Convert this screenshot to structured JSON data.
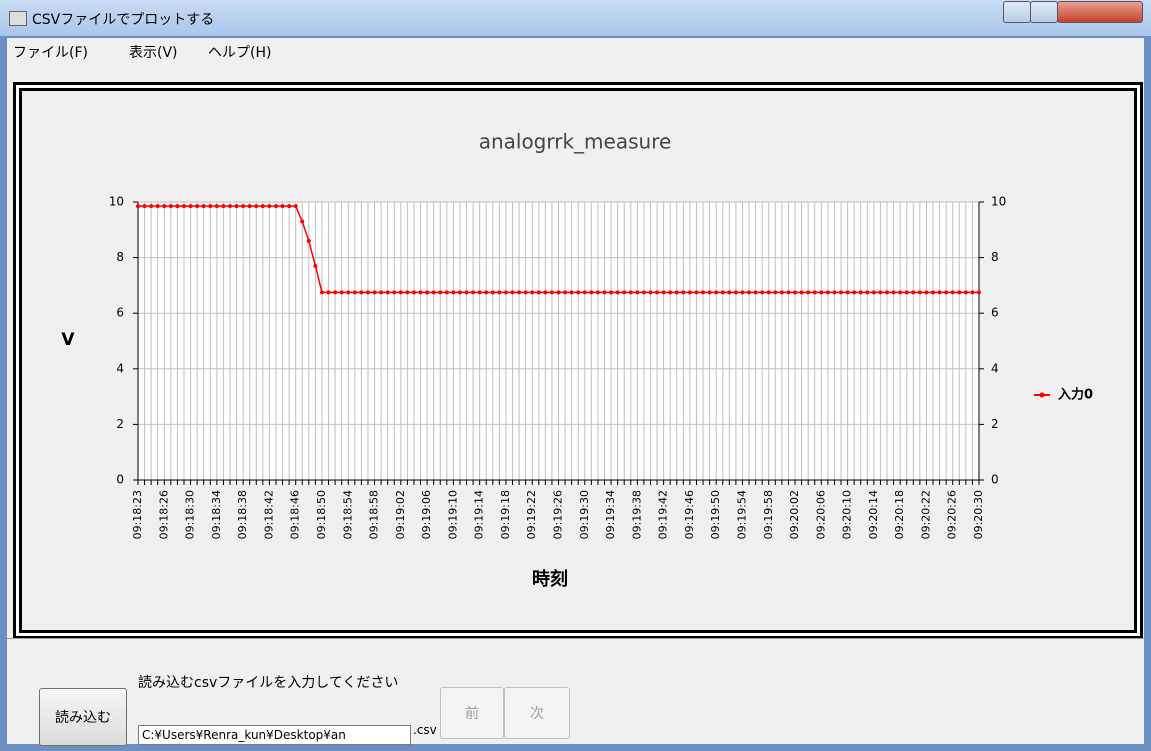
{
  "window": {
    "title": "CSVファイルでプロットする"
  },
  "menu": [
    "ファイル(F)",
    "表示(V)",
    "ヘルプ(H)"
  ],
  "chart_data": {
    "type": "line",
    "title": "analogrrk_measure",
    "x_label": "時刻",
    "y_label": "V",
    "categories": [
      "09:18:23",
      null,
      null,
      null,
      "09:18:26",
      null,
      null,
      null,
      "09:18:30",
      null,
      null,
      null,
      "09:18:34",
      null,
      null,
      null,
      "09:18:38",
      null,
      null,
      null,
      "09:18:42",
      null,
      null,
      null,
      "09:18:46",
      null,
      null,
      null,
      "09:18:50",
      null,
      null,
      null,
      "09:18:54",
      null,
      null,
      null,
      "09:18:58",
      null,
      null,
      null,
      "09:19:02",
      null,
      null,
      null,
      "09:19:06",
      null,
      null,
      null,
      "09:19:10",
      null,
      null,
      null,
      "09:19:14",
      null,
      null,
      null,
      "09:19:18",
      null,
      null,
      null,
      "09:19:22",
      null,
      null,
      null,
      "09:19:26",
      null,
      null,
      null,
      "09:19:30",
      null,
      null,
      null,
      "09:19:34",
      null,
      null,
      null,
      "09:19:38",
      null,
      null,
      null,
      "09:19:42",
      null,
      null,
      null,
      "09:19:46",
      null,
      null,
      null,
      "09:19:50",
      null,
      null,
      null,
      "09:19:54",
      null,
      null,
      null,
      "09:19:58",
      null,
      null,
      null,
      "09:20:02",
      null,
      null,
      null,
      "09:20:06",
      null,
      null,
      null,
      "09:20:10",
      null,
      null,
      null,
      "09:20:14",
      null,
      null,
      null,
      "09:20:18",
      null,
      null,
      null,
      "09:20:22",
      null,
      null,
      null,
      "09:20:26",
      null,
      null,
      null,
      "09:20:30"
    ],
    "series": [
      {
        "name": "入力0",
        "color": "#ff0000",
        "values": [
          9.85,
          9.85,
          9.85,
          9.85,
          9.85,
          9.85,
          9.85,
          9.85,
          9.85,
          9.85,
          9.85,
          9.85,
          9.85,
          9.85,
          9.85,
          9.85,
          9.85,
          9.85,
          9.85,
          9.85,
          9.85,
          9.85,
          9.85,
          9.85,
          9.85,
          9.3,
          8.6,
          7.7,
          6.75,
          6.75,
          6.75,
          6.75,
          6.75,
          6.75,
          6.75,
          6.75,
          6.75,
          6.75,
          6.75,
          6.75,
          6.75,
          6.75,
          6.75,
          6.75,
          6.75,
          6.75,
          6.75,
          6.75,
          6.75,
          6.75,
          6.75,
          6.75,
          6.75,
          6.75,
          6.75,
          6.75,
          6.75,
          6.75,
          6.75,
          6.75,
          6.75,
          6.75,
          6.75,
          6.75,
          6.75,
          6.75,
          6.75,
          6.75,
          6.75,
          6.75,
          6.75,
          6.75,
          6.75,
          6.75,
          6.75,
          6.75,
          6.75,
          6.75,
          6.75,
          6.75,
          6.75,
          6.75,
          6.75,
          6.75,
          6.75,
          6.75,
          6.75,
          6.75,
          6.75,
          6.75,
          6.75,
          6.75,
          6.75,
          6.75,
          6.75,
          6.75,
          6.75,
          6.75,
          6.75,
          6.75,
          6.75,
          6.75,
          6.75,
          6.75,
          6.75,
          6.75,
          6.75,
          6.75,
          6.75,
          6.75,
          6.75,
          6.75,
          6.75,
          6.75,
          6.75,
          6.75,
          6.75,
          6.75,
          6.75,
          6.75,
          6.75,
          6.75,
          6.75,
          6.75,
          6.75,
          6.75,
          6.75,
          6.75,
          6.75
        ]
      }
    ],
    "ylim": [
      0,
      10
    ],
    "yticks": [
      0,
      2,
      4,
      6,
      8,
      10
    ],
    "y2lim": [
      0,
      10
    ],
    "y2ticks": [
      0,
      2,
      4,
      6,
      8,
      10
    ],
    "grid": true,
    "legend": "right"
  },
  "controls": {
    "load_button": "読み込む",
    "prompt": "読み込むcsvファイルを入力してください",
    "path": "C:¥Users¥Renra_kun¥Desktop¥an",
    "extension": ".csv",
    "prev_button": "前",
    "next_button": "次"
  }
}
